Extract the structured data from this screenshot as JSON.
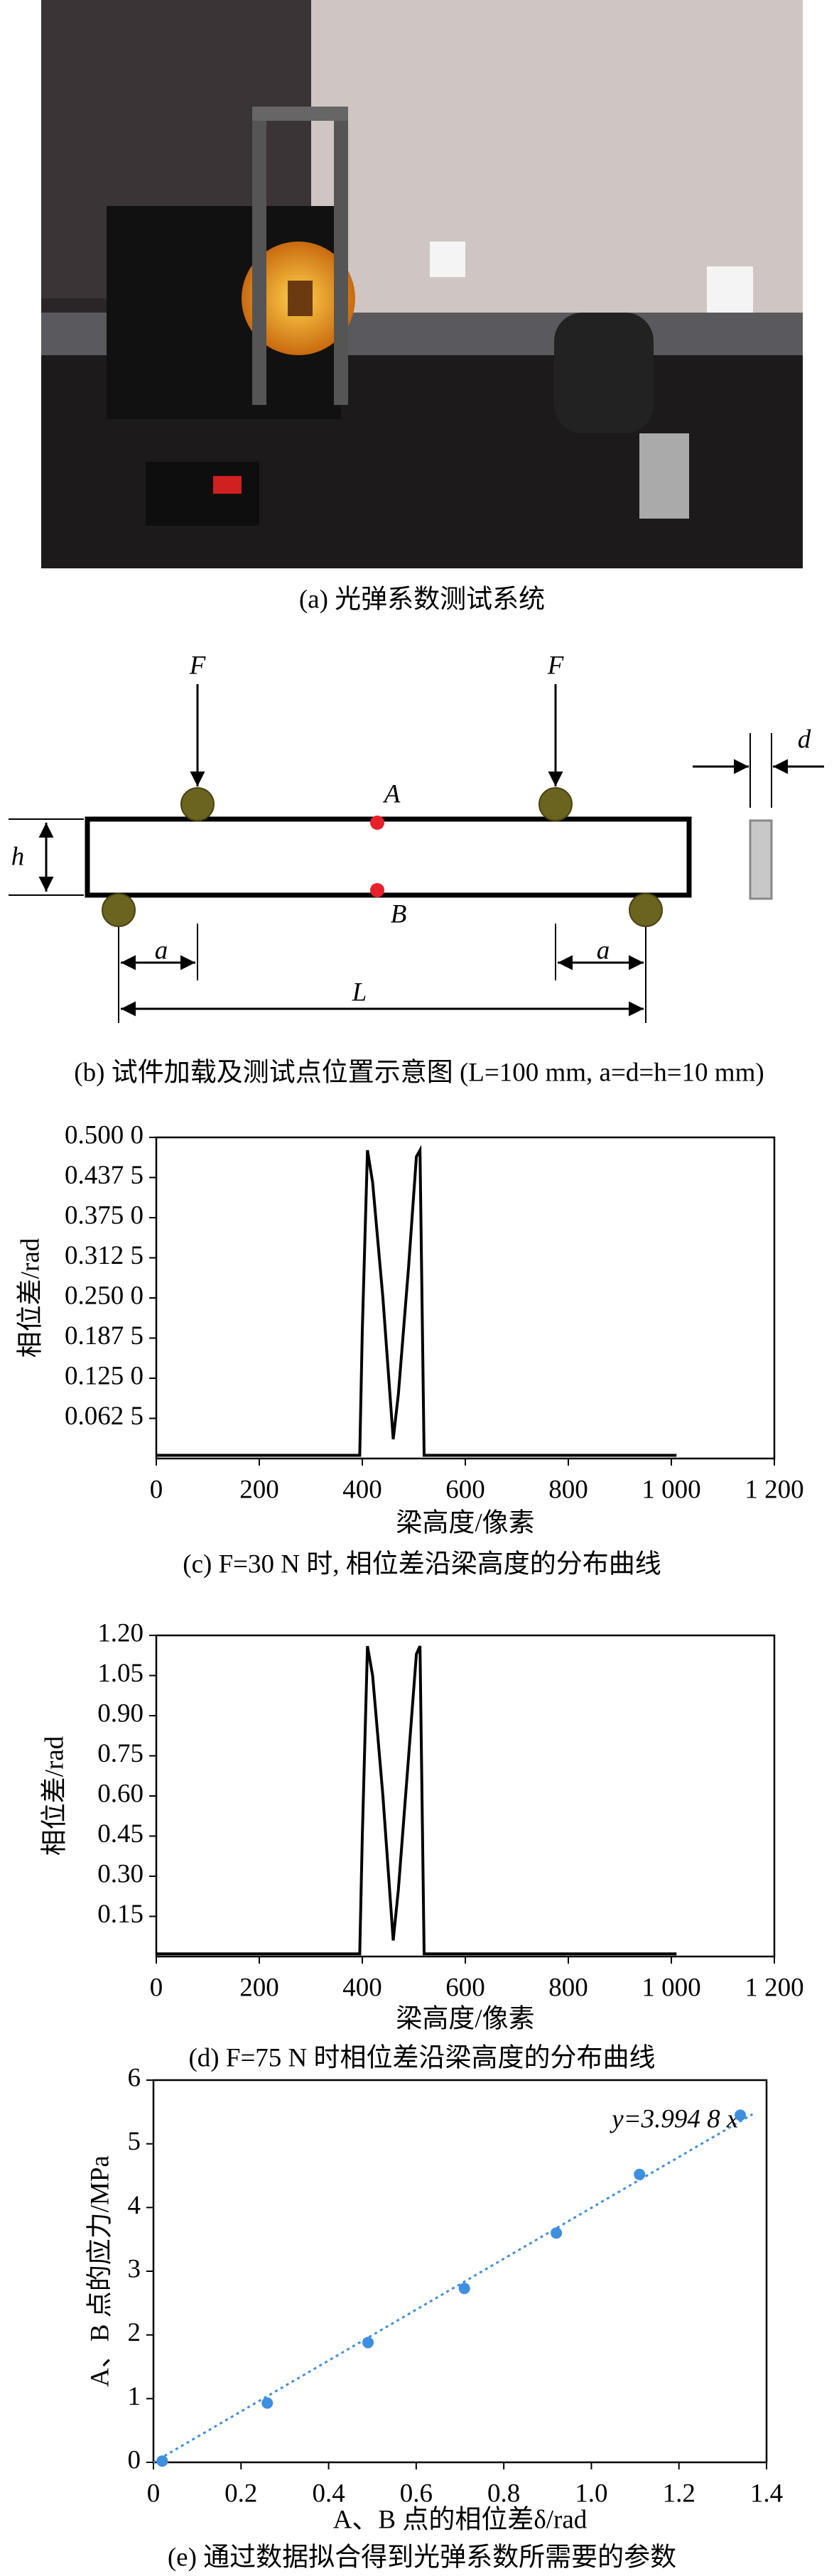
{
  "photo": {
    "caption": "(a) 光弹系数测试系统"
  },
  "diagram": {
    "F1": "F",
    "F2": "F",
    "A": "A",
    "B": "B",
    "h": "h",
    "a1": "a",
    "a2": "a",
    "L": "L",
    "d": "d",
    "caption": "(b) 试件加载及测试点位置示意图 (L=100 mm, a=d=h=10 mm)"
  },
  "chart_data": [
    {
      "type": "line",
      "caption": "(c) F=30 N 时, 相位差沿梁高度的分布曲线",
      "xlabel": "梁高度/像素",
      "ylabel": "相位差/rad",
      "color": "#000000",
      "x": [
        0,
        395,
        400,
        410,
        420,
        440,
        460,
        470,
        490,
        505,
        512,
        520,
        1010
      ],
      "values": [
        0.005,
        0.005,
        0.2,
        0.48,
        0.43,
        0.25,
        0.03,
        0.1,
        0.3,
        0.47,
        0.48,
        0.005,
        0.005
      ],
      "xlim": [
        0,
        1200
      ],
      "xticks": [
        0,
        200,
        400,
        600,
        800,
        {
          "value": 1000,
          "label": "1 000"
        },
        {
          "value": 1200,
          "label": "1 200"
        }
      ],
      "ylim": [
        0,
        0.5
      ],
      "yticks": [
        {
          "value": 0.0625,
          "label": "0.062 5"
        },
        {
          "value": 0.125,
          "label": "0.125 0"
        },
        {
          "value": 0.1875,
          "label": "0.187 5"
        },
        {
          "value": 0.25,
          "label": "0.250 0"
        },
        {
          "value": 0.3125,
          "label": "0.312 5"
        },
        {
          "value": 0.375,
          "label": "0.375 0"
        },
        {
          "value": 0.4375,
          "label": "0.437 5"
        },
        {
          "value": 0.5,
          "label": "0.500 0"
        }
      ]
    },
    {
      "type": "line",
      "caption": "(d) F=75 N 时相位差沿梁高度的分布曲线",
      "xlabel": "梁高度/像素",
      "ylabel": "相位差/rad",
      "color": "#000000",
      "x": [
        0,
        395,
        400,
        410,
        420,
        440,
        460,
        470,
        490,
        505,
        512,
        520,
        1010
      ],
      "values": [
        0.01,
        0.01,
        0.45,
        1.16,
        1.05,
        0.6,
        0.06,
        0.25,
        0.75,
        1.13,
        1.16,
        0.01,
        0.01
      ],
      "xlim": [
        0,
        1200
      ],
      "xticks": [
        0,
        200,
        400,
        600,
        800,
        {
          "value": 1000,
          "label": "1 000"
        },
        {
          "value": 1200,
          "label": "1 200"
        }
      ],
      "ylim": [
        0,
        1.2
      ],
      "yticks": [
        0.15,
        {
          "value": 0.3,
          "label": "0.30"
        },
        0.45,
        {
          "value": 0.6,
          "label": "0.60"
        },
        0.75,
        {
          "value": 0.9,
          "label": "0.90"
        },
        1.05,
        {
          "value": 1.2,
          "label": "1.20"
        }
      ]
    },
    {
      "type": "scatter",
      "caption": "(e) 通过数据拟合得到光弹系数所需要的参数",
      "xlabel": "A、B 点的相位差δ/rad",
      "ylabel": "A、B 点的应力/MPa",
      "color": "#3d8fe0",
      "x": [
        0.02,
        0.26,
        0.49,
        0.71,
        0.92,
        1.11,
        1.34
      ],
      "values": [
        0.02,
        0.93,
        1.88,
        2.73,
        3.6,
        4.52,
        5.45
      ],
      "trendline": {
        "slope": 3.9948,
        "label": "y=3.994 8 x"
      },
      "xlim": [
        0,
        1.4
      ],
      "xticks": [
        0,
        0.2,
        0.4,
        0.6,
        0.8,
        {
          "value": 1,
          "label": "1.0"
        },
        1.2,
        1.4
      ],
      "ylim": [
        0,
        6
      ],
      "yticks": [
        0,
        1,
        2,
        3,
        4,
        5,
        6
      ]
    }
  ]
}
